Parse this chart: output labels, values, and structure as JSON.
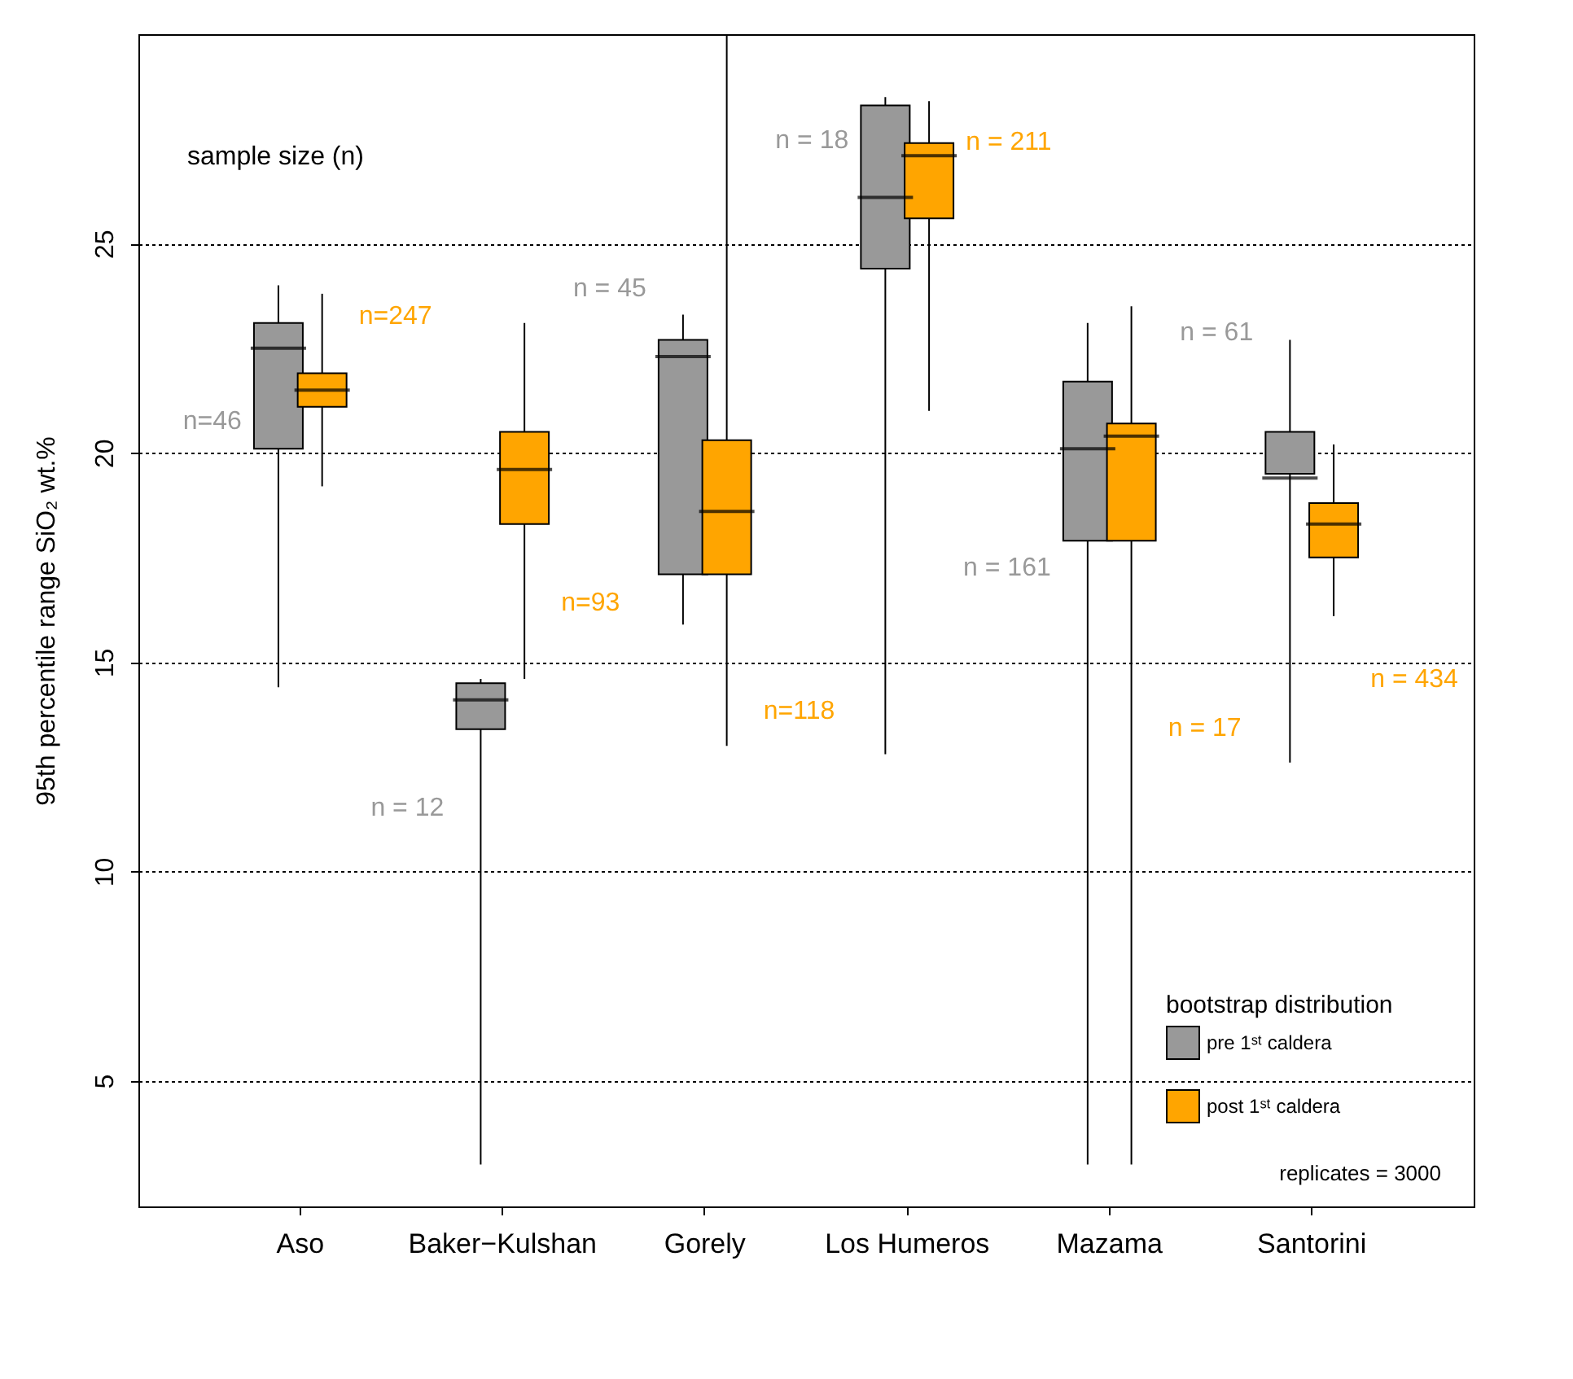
{
  "chart_data": {
    "type": "box",
    "ylabel": "95th percentile range  SiO₂ wt.%",
    "legend_title": "bootstrap distribution",
    "categories": [
      "Aso",
      "Baker−Kulshan",
      "Gorely",
      "Los Humeros",
      "Mazama",
      "Santorini"
    ],
    "ylim": [
      2,
      30
    ],
    "yticks": [
      5,
      10,
      15,
      20,
      25
    ],
    "grid": "y",
    "line_style": "dotted",
    "legend": "bottom right",
    "series": [
      {
        "name": "pre 1ˢᵗ caldera",
        "color": "#999999",
        "boxes": [
          {
            "low": 14.4,
            "q1": 20.1,
            "median": 22.5,
            "q3": 23.1,
            "high": 24.0
          },
          {
            "low": 3.0,
            "q1": 13.4,
            "median": 14.1,
            "q3": 14.5,
            "high": 14.6
          },
          {
            "low": 15.9,
            "q1": 17.1,
            "median": 22.3,
            "q3": 22.7,
            "high": 23.3
          },
          {
            "low": 12.8,
            "q1": 24.4,
            "median": 26.1,
            "q3": 28.3,
            "high": 28.5
          },
          {
            "low": 3.0,
            "q1": 17.9,
            "median": 20.1,
            "q3": 21.7,
            "high": 23.1
          },
          {
            "low": 12.6,
            "q1": 19.5,
            "median": 19.4,
            "q3": 20.5,
            "high": 22.7
          }
        ]
      },
      {
        "name": "post 1ˢᵗ caldera",
        "color": "#ffa500",
        "boxes": [
          {
            "low": 19.2,
            "q1": 21.1,
            "median": 21.5,
            "q3": 21.9,
            "high": 23.8
          },
          {
            "low": 14.6,
            "q1": 18.3,
            "median": 19.6,
            "q3": 20.5,
            "high": 23.1
          },
          {
            "low": 13.0,
            "q1": 17.1,
            "median": 18.6,
            "q3": 20.3,
            "high": 30.0
          },
          {
            "low": 21.0,
            "q1": 25.6,
            "median": 27.1,
            "q3": 27.4,
            "high": 28.4
          },
          {
            "low": 3.0,
            "q1": 17.9,
            "median": 20.4,
            "q3": 20.7,
            "high": 23.5
          },
          {
            "low": 16.1,
            "q1": 17.5,
            "median": 18.3,
            "q3": 18.8,
            "high": 20.2
          }
        ]
      }
    ],
    "annotations": [
      "sample size (n)",
      "replicates = 3000",
      "n=46",
      "n=247",
      "n = 12",
      "n=93",
      "n = 45",
      "n=118",
      "n = 18",
      "n = 211",
      "n = 161",
      "n = 17",
      "n = 61",
      "n = 434"
    ]
  }
}
